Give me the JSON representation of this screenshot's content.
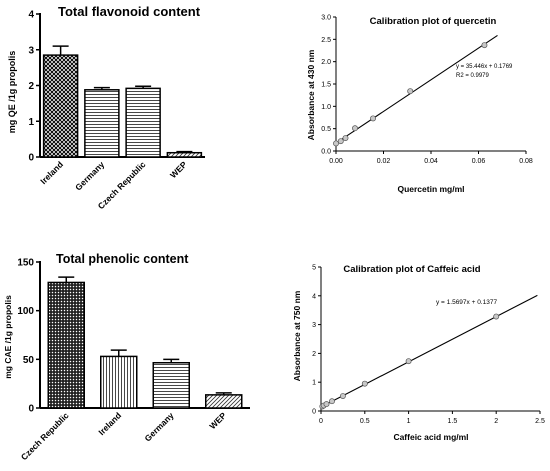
{
  "chart_data": [
    {
      "id": "flav",
      "type": "bar",
      "title": "Total  flavonoid content",
      "ylabel": "mg QE /1g propolis",
      "xlabel": "",
      "ylim": [
        0,
        4
      ],
      "yticks": [
        "0",
        "1",
        "2",
        "3",
        "4"
      ],
      "categories": [
        "Ireland",
        "Germany",
        "Czech Republic",
        "WEP"
      ],
      "values": [
        2.85,
        1.88,
        1.92,
        0.12
      ],
      "errors": [
        0.25,
        0.06,
        0.06,
        0.03
      ],
      "patterns": [
        "crosshatch",
        "hlines",
        "hlines",
        "diagonal"
      ]
    },
    {
      "id": "quer",
      "type": "scatter",
      "title": "Calibration plot of quercetin",
      "xlabel": "Quercetin mg/ml",
      "ylabel": "Absorbance at 430 nm",
      "xlim": [
        0,
        0.08
      ],
      "ylim": [
        0,
        3.0
      ],
      "xticks": [
        "0.00",
        "0.02",
        "0.04",
        "0.06",
        "0.08"
      ],
      "yticks": [
        "0.0",
        "0.5",
        "1.0",
        "1.5",
        "2.0",
        "2.5",
        "3.0"
      ],
      "x": [
        0,
        0.002,
        0.004,
        0.008,
        0.0156,
        0.03125,
        0.0625
      ],
      "y": [
        0.17,
        0.22,
        0.29,
        0.51,
        0.73,
        1.34,
        2.37
      ],
      "fit": {
        "slope": 35.446,
        "intercept": 0.1769
      },
      "annotation": [
        "y = 35.446x + 0.1769",
        "R2 = 0.9979"
      ]
    },
    {
      "id": "phen",
      "type": "bar",
      "title": "Total phenolic content",
      "ylabel": "mg CAE /1g propolis",
      "xlabel": "",
      "ylim": [
        0,
        150
      ],
      "yticks": [
        "0",
        "50",
        "100",
        "150"
      ],
      "categories": [
        "Czech Republic",
        "Ireland",
        "Germany",
        "WEP"
      ],
      "values": [
        129,
        53,
        46.5,
        13.5
      ],
      "errors": [
        5.5,
        6.5,
        3.5,
        2.0
      ],
      "patterns": [
        "dots",
        "vlines",
        "hlines",
        "diagonal"
      ]
    },
    {
      "id": "caff",
      "type": "scatter",
      "title": "Calibration plot of Caffeic acid",
      "xlabel": "Caffeic acid  mg/ml",
      "ylabel": "Absorbance at 750 nm",
      "xlim": [
        0,
        2.5
      ],
      "ylim": [
        0,
        5
      ],
      "xticks": [
        "0",
        "0.5",
        "1",
        "1.5",
        "2",
        "2.5"
      ],
      "yticks": [
        "0",
        "1",
        "2",
        "3",
        "4",
        "5"
      ],
      "x": [
        0.0156,
        0.03125,
        0.0625,
        0.125,
        0.25,
        0.5,
        1.0,
        2.0
      ],
      "y": [
        0.16,
        0.19,
        0.24,
        0.34,
        0.52,
        0.95,
        1.73,
        3.28
      ],
      "fit": {
        "slope": 1.5697,
        "intercept": 0.1377
      },
      "annotation": [
        "y = 1.5697x + 0.1377"
      ]
    }
  ]
}
